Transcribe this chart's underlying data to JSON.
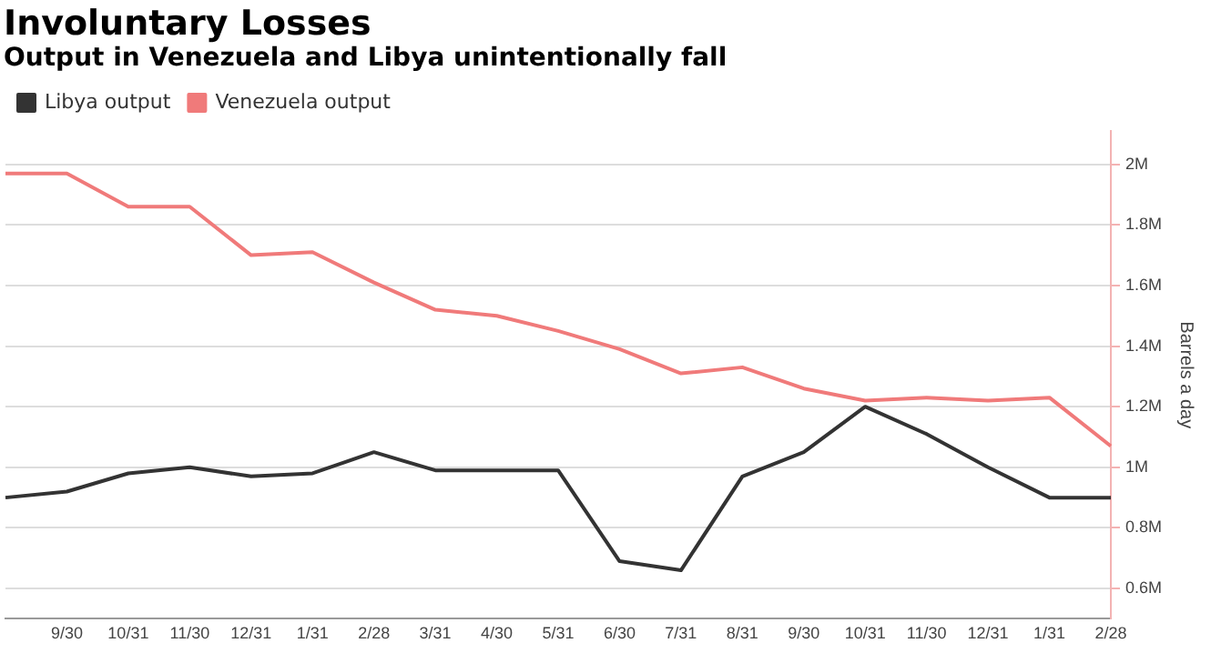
{
  "chart_data": {
    "type": "line",
    "title": "Involuntary Losses",
    "subtitle": "Output in Venezuela and Libya unintentionally fall",
    "ylabel": "Barrels a day",
    "categories": [
      null,
      "9/30",
      "10/31",
      "11/30",
      "12/31",
      "1/31",
      "2/28",
      "3/31",
      "4/30",
      "5/31",
      "6/30",
      "7/31",
      "8/31",
      "9/30",
      "10/31",
      "11/30",
      "12/31",
      "1/31",
      "2/28"
    ],
    "series": [
      {
        "name": "Libya output",
        "color": "#333333",
        "values": [
          0.9,
          0.92,
          0.98,
          1.0,
          0.97,
          0.98,
          1.05,
          0.99,
          0.99,
          0.99,
          0.69,
          0.66,
          0.97,
          1.05,
          1.2,
          1.11,
          1.0,
          0.9,
          0.9
        ]
      },
      {
        "name": "Venezuela output",
        "color": "#f07a7a",
        "values": [
          1.97,
          1.97,
          1.86,
          1.86,
          1.7,
          1.71,
          1.61,
          1.52,
          1.5,
          1.45,
          1.39,
          1.31,
          1.33,
          1.26,
          1.22,
          1.23,
          1.22,
          1.23,
          1.07
        ]
      }
    ],
    "ylim": [
      0.5,
      2.11
    ],
    "yticks": [
      {
        "value": 0.6,
        "label": "0.6M"
      },
      {
        "value": 0.8,
        "label": "0.8M"
      },
      {
        "value": 1,
        "label": "1M"
      },
      {
        "value": 1.2,
        "label": "1.2M"
      },
      {
        "value": 1.4,
        "label": "1.4M"
      },
      {
        "value": 1.6,
        "label": "1.6M"
      },
      {
        "value": 1.8,
        "label": "1.8M"
      },
      {
        "value": 2,
        "label": "2M"
      }
    ],
    "grid": "y",
    "legend": "top left",
    "marker": "none",
    "line_style": "solid"
  }
}
